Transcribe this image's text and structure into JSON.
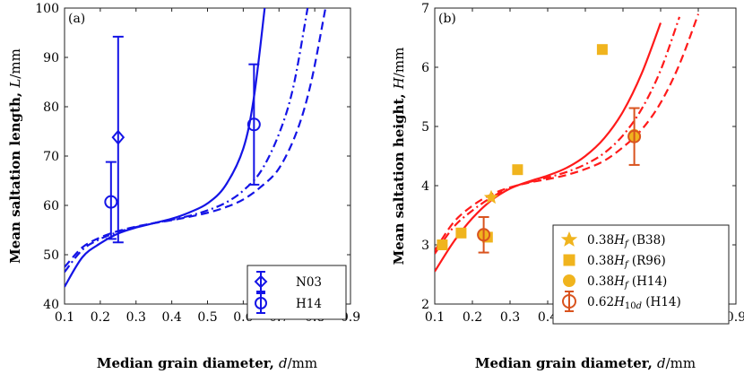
{
  "chart_data": [
    {
      "type": "line",
      "panel_label": "(a)",
      "xlabel": "Median grain diameter, d/mm",
      "ylabel": "Mean saltation length, L/mm",
      "xlim": [
        0.1,
        0.9
      ],
      "ylim": [
        40,
        100
      ],
      "xticks": [
        "0.1",
        "0.2",
        "0.3",
        "0.4",
        "0.5",
        "0.6",
        "0.7",
        "0.8",
        "0.9"
      ],
      "yticks": [
        "40",
        "50",
        "60",
        "70",
        "80",
        "90",
        "100"
      ],
      "legend_position": "bottom-right",
      "lines": [
        {
          "style": "solid",
          "color": "#1414e6",
          "x": [
            0.1,
            0.15,
            0.2,
            0.25,
            0.3,
            0.35,
            0.4,
            0.45,
            0.5,
            0.55,
            0.6,
            0.63,
            0.66
          ],
          "y": [
            43.5,
            49.5,
            52.3,
            54.3,
            55.5,
            56.4,
            57.3,
            58.6,
            60.4,
            64.0,
            71.5,
            82.0,
            100
          ]
        },
        {
          "style": "dashdot",
          "color": "#1414e6",
          "x": [
            0.1,
            0.15,
            0.2,
            0.25,
            0.3,
            0.35,
            0.4,
            0.45,
            0.5,
            0.55,
            0.6,
            0.65,
            0.7,
            0.74,
            0.78
          ],
          "y": [
            46.5,
            51.0,
            53.2,
            54.6,
            55.6,
            56.4,
            57.1,
            57.9,
            59.0,
            60.5,
            63.0,
            67.0,
            74.5,
            84.0,
            100
          ]
        },
        {
          "style": "dashed",
          "color": "#1414e6",
          "x": [
            0.1,
            0.15,
            0.2,
            0.25,
            0.3,
            0.35,
            0.4,
            0.45,
            0.5,
            0.55,
            0.6,
            0.65,
            0.7,
            0.75,
            0.79,
            0.83
          ],
          "y": [
            47.5,
            51.5,
            53.5,
            54.8,
            55.7,
            56.4,
            57.0,
            57.7,
            58.5,
            59.6,
            61.2,
            63.8,
            67.5,
            75.0,
            85.0,
            100
          ]
        }
      ],
      "series": [
        {
          "name": "N03",
          "marker": "diamond",
          "color": "#1414e6",
          "x": [
            0.25
          ],
          "y": [
            73.8
          ],
          "err_low": [
            52.5
          ],
          "err_high": [
            94.2
          ]
        },
        {
          "name": "H14",
          "marker": "circle",
          "color": "#1414e6",
          "x": [
            0.23,
            0.63
          ],
          "y": [
            60.7,
            76.4
          ],
          "err_low": [
            53.2,
            64.2
          ],
          "err_high": [
            68.8,
            88.6
          ]
        }
      ]
    },
    {
      "type": "line",
      "panel_label": "(b)",
      "xlabel": "Median grain diameter, d/mm",
      "ylabel": "Mean saltation height, H/mm",
      "xlim": [
        0.1,
        0.9
      ],
      "ylim": [
        2,
        7
      ],
      "xticks": [
        "0.1",
        "0.2",
        "0.3",
        "0.4",
        "0.5",
        "0.6",
        "0.7",
        "0.8",
        "0.9"
      ],
      "yticks": [
        "2",
        "3",
        "4",
        "5",
        "6",
        "7"
      ],
      "legend_position": "bottom-right",
      "lines": [
        {
          "style": "solid",
          "color": "#ff1a1a",
          "x": [
            0.1,
            0.15,
            0.2,
            0.25,
            0.3,
            0.35,
            0.4,
            0.45,
            0.5,
            0.55,
            0.6,
            0.65,
            0.7
          ],
          "y": [
            2.55,
            3.05,
            3.45,
            3.75,
            3.95,
            4.07,
            4.17,
            4.3,
            4.5,
            4.8,
            5.25,
            5.9,
            6.75
          ]
        },
        {
          "style": "dashdot",
          "color": "#ff1a1a",
          "x": [
            0.1,
            0.15,
            0.2,
            0.25,
            0.3,
            0.35,
            0.4,
            0.45,
            0.5,
            0.55,
            0.6,
            0.65,
            0.7,
            0.75
          ],
          "y": [
            2.85,
            3.3,
            3.58,
            3.8,
            3.96,
            4.06,
            4.14,
            4.23,
            4.36,
            4.55,
            4.85,
            5.3,
            5.95,
            6.85
          ]
        },
        {
          "style": "dashed",
          "color": "#ff1a1a",
          "x": [
            0.1,
            0.15,
            0.2,
            0.25,
            0.3,
            0.35,
            0.4,
            0.45,
            0.5,
            0.55,
            0.6,
            0.65,
            0.7,
            0.75,
            0.8
          ],
          "y": [
            2.9,
            3.38,
            3.66,
            3.85,
            3.97,
            4.05,
            4.11,
            4.18,
            4.28,
            4.42,
            4.65,
            4.95,
            5.4,
            6.05,
            6.9
          ]
        }
      ],
      "series": [
        {
          "name": "0.38H_f (B38)",
          "marker": "star",
          "color": "#f0b41e",
          "x": [
            0.25
          ],
          "y": [
            3.8
          ]
        },
        {
          "name": "0.38H_f (R96)",
          "marker": "square",
          "color": "#f0b41e",
          "x": [
            0.12,
            0.17,
            0.24,
            0.32,
            0.545
          ],
          "y": [
            3.0,
            3.2,
            3.13,
            4.27,
            6.3
          ]
        },
        {
          "name": "0.38H_f (H14)",
          "marker": "filled-circle",
          "color": "#f0b41e",
          "x": [
            0.23,
            0.63
          ],
          "y": [
            3.17,
            4.85
          ]
        },
        {
          "name": "0.62H_10d (H14)",
          "marker": "circle",
          "color": "#d9531e",
          "x": [
            0.23,
            0.63
          ],
          "y": [
            3.17,
            4.83
          ],
          "err_low": [
            2.87,
            4.35
          ],
          "err_high": [
            3.47,
            5.31
          ]
        }
      ]
    }
  ]
}
